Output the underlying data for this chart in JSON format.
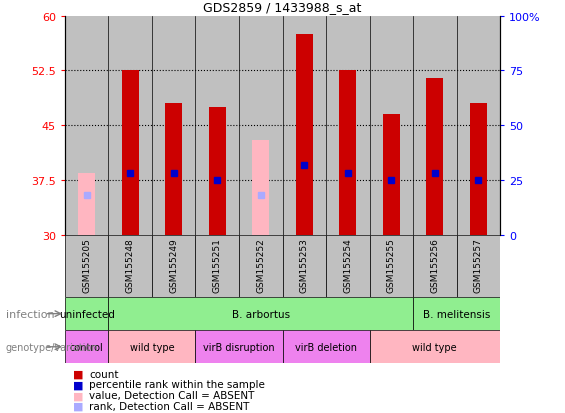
{
  "title": "GDS2859 / 1433988_s_at",
  "samples": [
    "GSM155205",
    "GSM155248",
    "GSM155249",
    "GSM155251",
    "GSM155252",
    "GSM155253",
    "GSM155254",
    "GSM155255",
    "GSM155256",
    "GSM155257"
  ],
  "count_values": [
    null,
    52.5,
    48.0,
    47.5,
    null,
    57.5,
    52.5,
    46.5,
    51.5,
    48.0
  ],
  "rank_values": [
    null,
    38.5,
    38.5,
    37.5,
    null,
    39.5,
    38.5,
    37.5,
    38.5,
    37.5
  ],
  "absent_value_values": [
    38.5,
    null,
    null,
    null,
    43.0,
    null,
    null,
    null,
    null,
    null
  ],
  "absent_rank_values": [
    35.5,
    null,
    null,
    null,
    35.5,
    null,
    null,
    null,
    null,
    null
  ],
  "ymin": 30,
  "ymax": 60,
  "yticks": [
    30,
    37.5,
    45,
    52.5,
    60
  ],
  "right_yticks": [
    0,
    25,
    50,
    75,
    100
  ],
  "right_ytick_labels": [
    "0",
    "25",
    "50",
    "75",
    "100%"
  ],
  "infection_groups": [
    {
      "label": "uninfected",
      "start": 0,
      "end": 1,
      "color": "#90EE90"
    },
    {
      "label": "B. arbortus",
      "start": 1,
      "end": 8,
      "color": "#90EE90"
    },
    {
      "label": "B. melitensis",
      "start": 8,
      "end": 10,
      "color": "#90EE90"
    }
  ],
  "genotype_groups": [
    {
      "label": "control",
      "start": 0,
      "end": 1,
      "color": "#EE82EE"
    },
    {
      "label": "wild type",
      "start": 1,
      "end": 3,
      "color": "#FFB6C1"
    },
    {
      "label": "virB disruption",
      "start": 3,
      "end": 5,
      "color": "#EE82EE"
    },
    {
      "label": "virB deletion",
      "start": 5,
      "end": 7,
      "color": "#EE82EE"
    },
    {
      "label": "wild type",
      "start": 7,
      "end": 10,
      "color": "#FFB6C1"
    }
  ],
  "bar_width": 0.4,
  "count_color": "#CC0000",
  "rank_color": "#0000CC",
  "absent_value_color": "#FFB6C1",
  "absent_rank_color": "#AAAAFF",
  "sample_bg_color": "#C0C0C0",
  "fig_width": 5.65,
  "fig_height": 4.14,
  "dpi": 100
}
